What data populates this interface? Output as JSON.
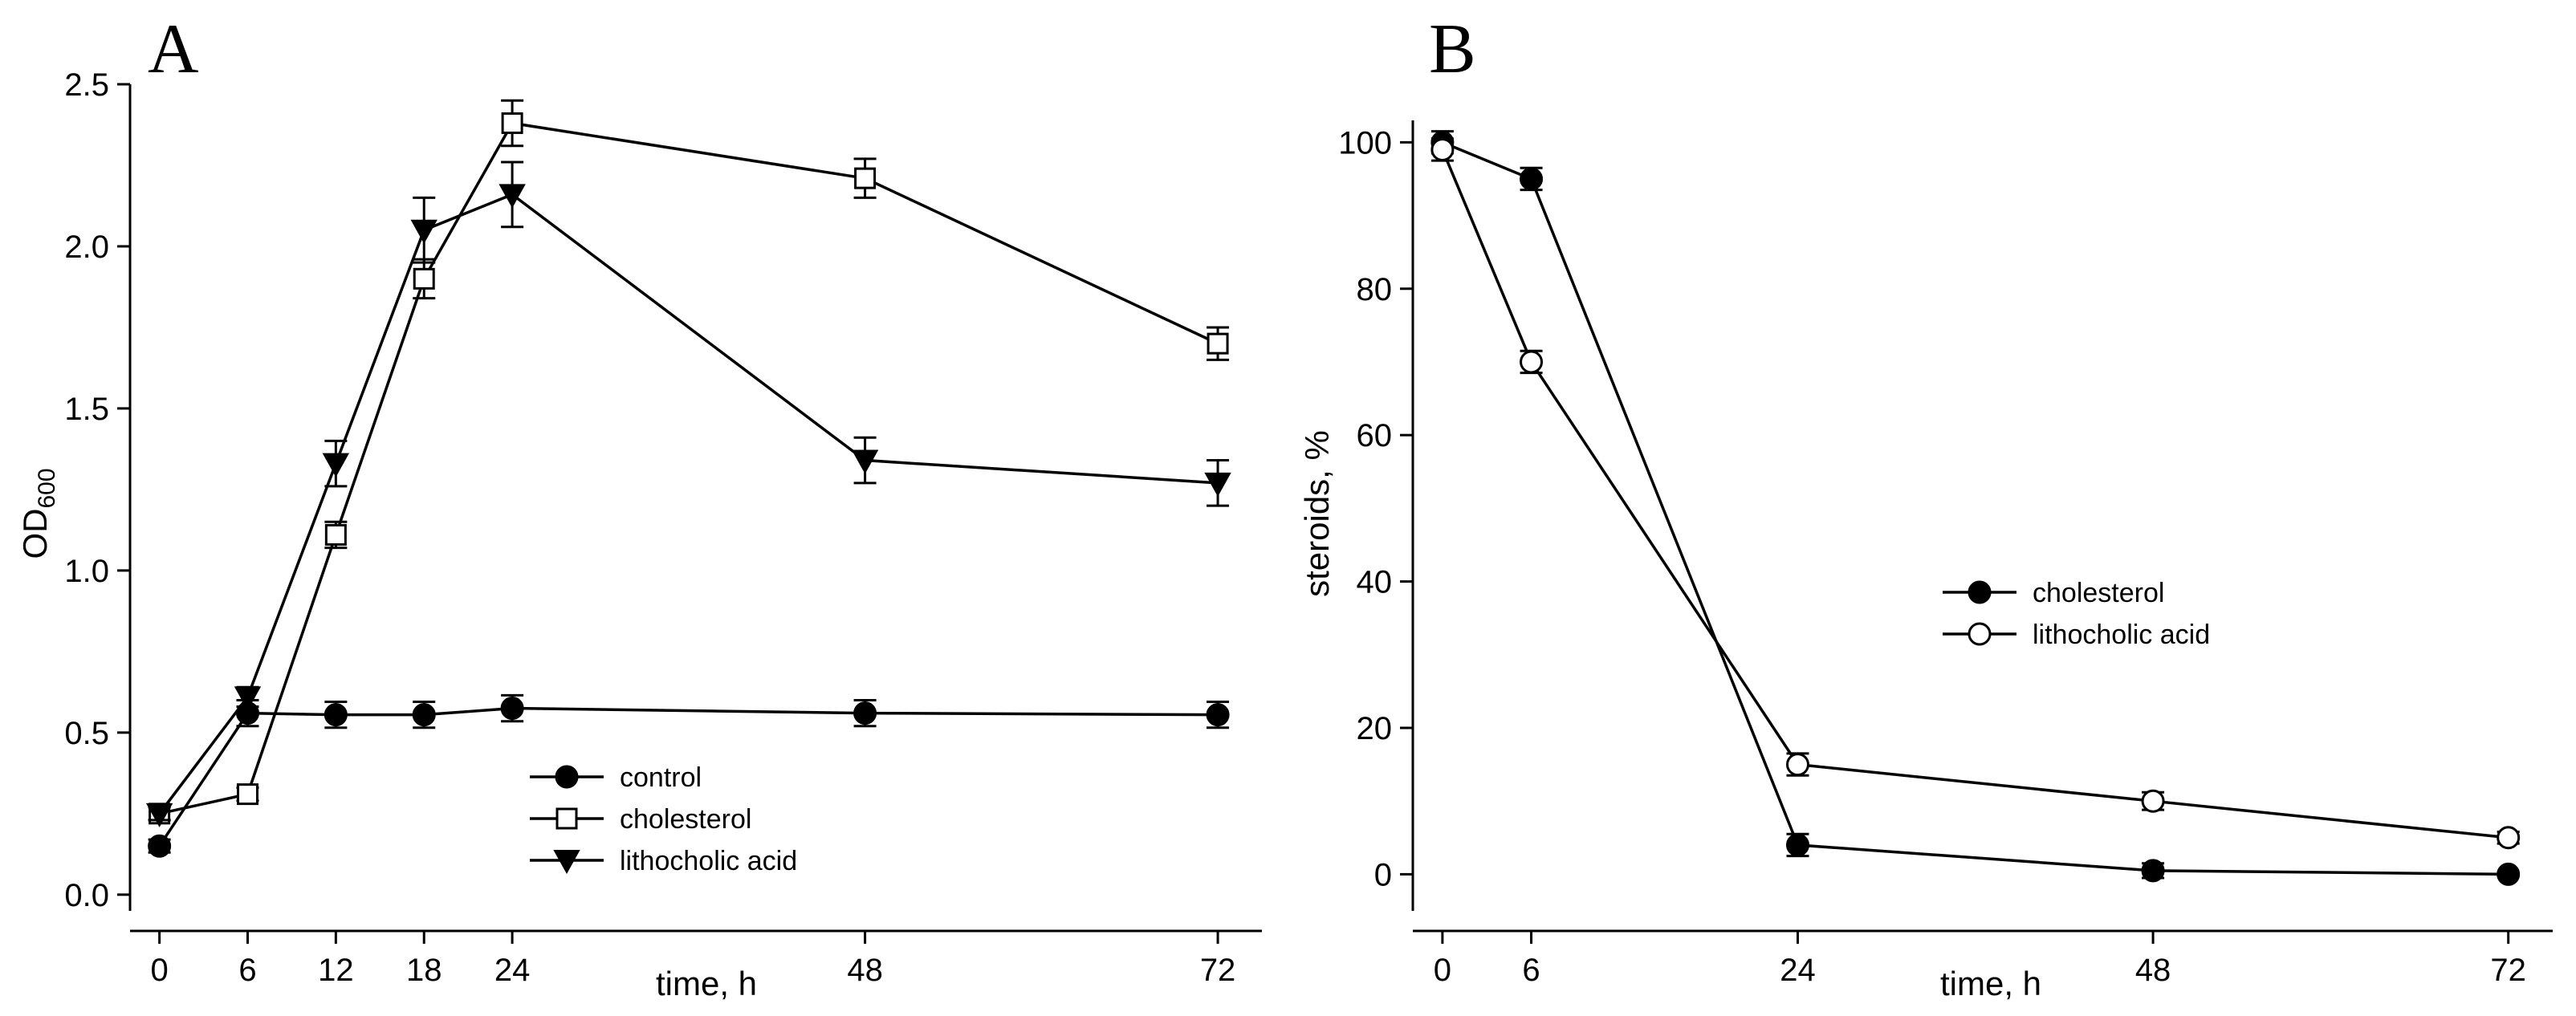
{
  "colors": {
    "ink": "#000000",
    "background": "#ffffff",
    "open_fill": "#ffffff"
  },
  "chart_data": [
    {
      "panel": "A",
      "type": "line",
      "xlabel": "time, h",
      "ylabel": "OD",
      "ylabel_subscript": "600",
      "x_ticks": [
        "0",
        "6",
        "12",
        "18",
        "24",
        "48",
        "72"
      ],
      "y_ticks": [
        "0.0",
        "0.5",
        "1.0",
        "1.5",
        "2.0",
        "2.5"
      ],
      "xlim": [
        -2,
        75
      ],
      "ylim": [
        -0.05,
        2.5
      ],
      "legend_position": "bottom-center",
      "series": [
        {
          "name": "control",
          "marker": "circle-filled",
          "x": [
            0,
            6,
            12,
            18,
            24,
            48,
            72
          ],
          "y": [
            0.15,
            0.56,
            0.555,
            0.555,
            0.575,
            0.56,
            0.555
          ],
          "err": [
            0.02,
            0.04,
            0.04,
            0.04,
            0.04,
            0.04,
            0.04
          ]
        },
        {
          "name": "cholesterol",
          "marker": "square-open",
          "x": [
            0,
            6,
            12,
            18,
            24,
            48,
            72
          ],
          "y": [
            0.25,
            0.31,
            1.11,
            1.9,
            2.38,
            2.21,
            1.7
          ],
          "err": [
            0.02,
            0.02,
            0.04,
            0.06,
            0.07,
            0.06,
            0.05
          ]
        },
        {
          "name": "lithocholic acid",
          "marker": "triangle-down-filled",
          "x": [
            0,
            6,
            12,
            18,
            24,
            48,
            72
          ],
          "y": [
            0.25,
            0.61,
            1.33,
            2.05,
            2.16,
            1.34,
            1.27
          ],
          "err": [
            0.02,
            0.03,
            0.07,
            0.1,
            0.1,
            0.07,
            0.07
          ]
        }
      ]
    },
    {
      "panel": "B",
      "type": "line",
      "xlabel": "time, h",
      "ylabel": "steroids, %",
      "x_ticks": [
        "0",
        "6",
        "24",
        "48",
        "72"
      ],
      "y_ticks": [
        "0",
        "20",
        "40",
        "60",
        "80",
        "100"
      ],
      "xlim": [
        -2,
        75
      ],
      "ylim": [
        -5,
        103
      ],
      "legend_position": "center-right",
      "series": [
        {
          "name": "cholesterol",
          "marker": "circle-filled",
          "x": [
            0,
            6,
            24,
            48,
            72
          ],
          "y": [
            100,
            95,
            4,
            0.5,
            0
          ],
          "err": [
            1.5,
            1.5,
            1.5,
            1,
            0
          ]
        },
        {
          "name": "lithocholic acid",
          "marker": "circle-open",
          "x": [
            0,
            6,
            24,
            48,
            72
          ],
          "y": [
            99,
            70,
            15,
            10,
            5
          ],
          "err": [
            1.5,
            1.5,
            1.5,
            1.2,
            0.8
          ]
        }
      ]
    }
  ]
}
